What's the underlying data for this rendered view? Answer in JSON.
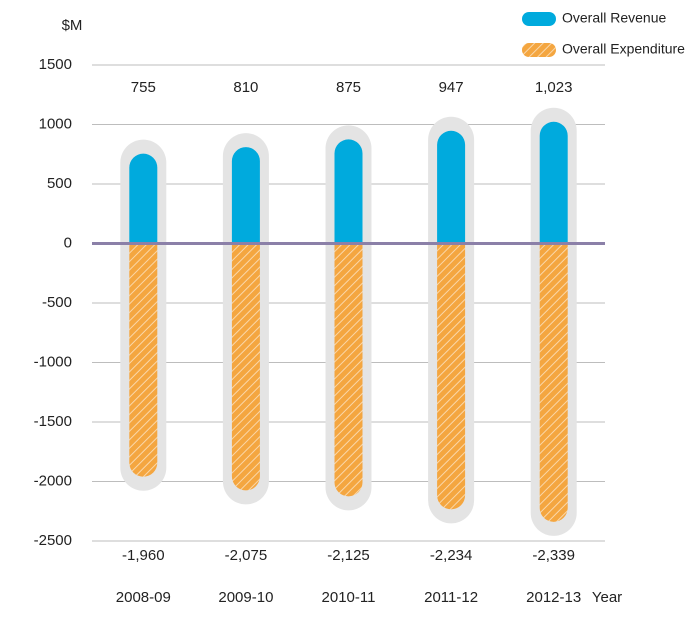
{
  "chart_data": {
    "type": "bar",
    "y_label": "$M",
    "x_label": "Year",
    "categories": [
      "2008-09",
      "2009-10",
      "2010-11",
      "2011-12",
      "2012-13"
    ],
    "series": [
      {
        "name": "Overall Revenue",
        "color": "#00aadd",
        "values": [
          755,
          810,
          875,
          947,
          1023
        ],
        "value_labels": [
          "755",
          "810",
          "875",
          "947",
          "1,023"
        ]
      },
      {
        "name": "Overall Expenditure",
        "color": "#f4a640",
        "hatch": true,
        "values": [
          -1960,
          -2075,
          -2125,
          -2234,
          -2339
        ],
        "value_labels": [
          "-1,960",
          "-2,075",
          "-2,125",
          "-2,234",
          "-2,339"
        ]
      }
    ],
    "ylim": [
      -2500,
      1500
    ],
    "yticks": [
      -2500,
      -2000,
      -1500,
      -1000,
      -500,
      0,
      500,
      1000,
      1500
    ],
    "grid": true,
    "legend": "top-right"
  }
}
